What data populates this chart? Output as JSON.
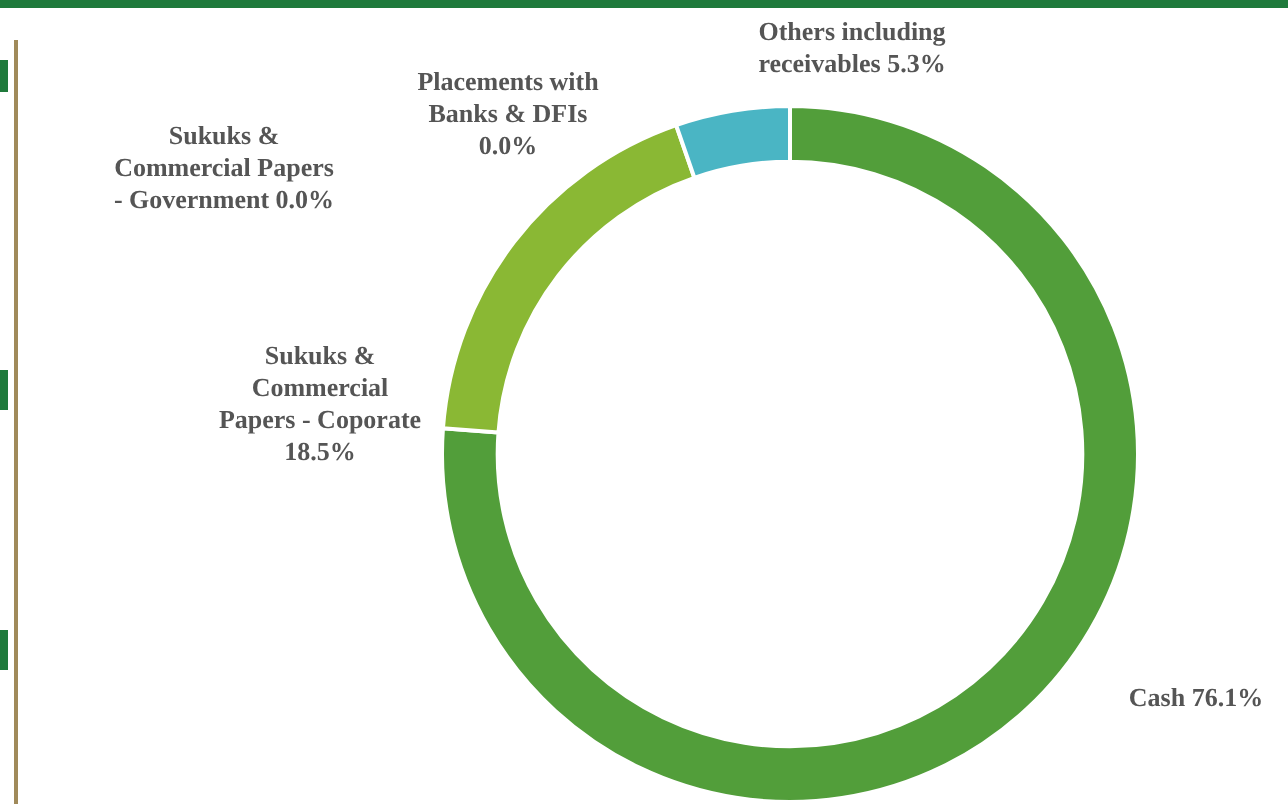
{
  "chart_data": {
    "type": "donut",
    "categories": [
      "Cash",
      "Sukuks & Commercial Papers - Coporate",
      "Sukuks & Commercial Papers - Government",
      "Placements with Banks & DFIs",
      "Others including receivables"
    ],
    "values": [
      76.1,
      18.5,
      0.0,
      0.0,
      5.3
    ],
    "colors": [
      "#529e3a",
      "#8ab834",
      "#3f7f2a",
      "#6fa83c",
      "#4ab5c4"
    ],
    "value_labels": [
      "76.1%",
      "18.5%",
      "0.0%",
      "0.0%",
      "5.3%"
    ],
    "legend": false
  }
}
